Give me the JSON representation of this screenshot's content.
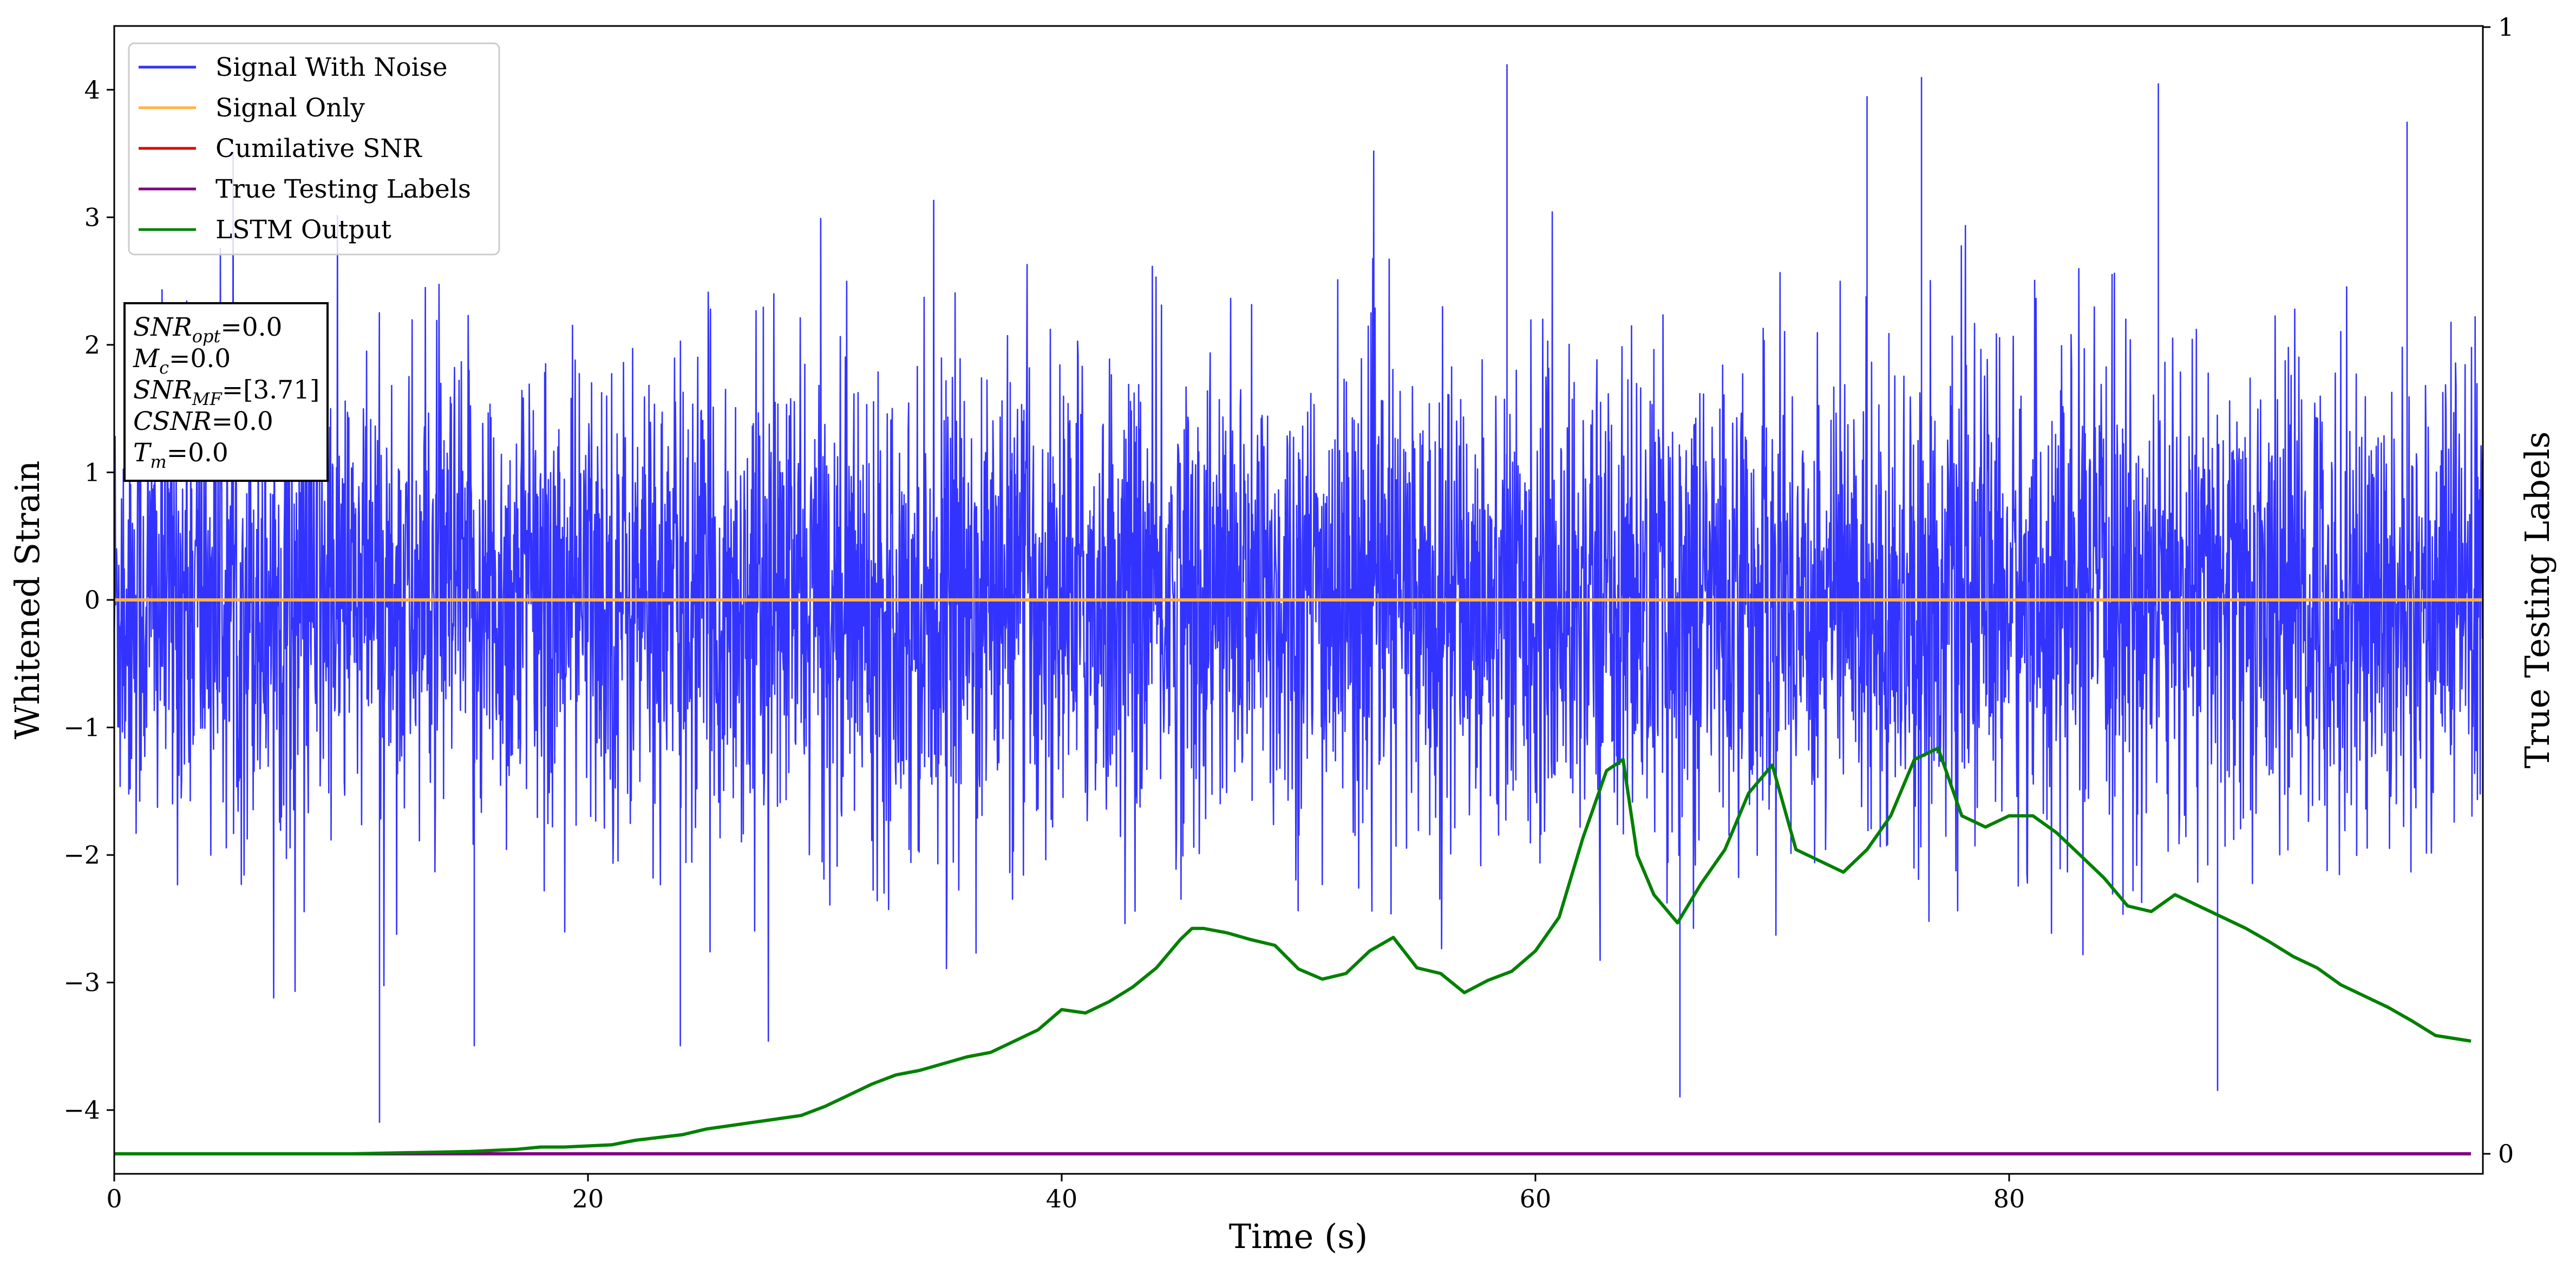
{
  "chart_data": {
    "type": "line",
    "xlabel": "Time (s)",
    "ylabel": "Whitened Strain",
    "y2label": "True Testing Labels",
    "xlim": [
      0,
      100
    ],
    "ylim": [
      -4.5,
      4.5
    ],
    "y2lim": [
      0,
      1
    ],
    "xticks": [
      0,
      20,
      40,
      60,
      80
    ],
    "yticks": [
      -4,
      -3,
      -2,
      -1,
      0,
      1,
      2,
      3,
      4
    ],
    "y2ticks": [
      0,
      1
    ],
    "grid": false,
    "legend_position": "top-left",
    "noise_envelope": {
      "typical_range": [
        -2.0,
        2.0
      ],
      "extreme_spikes": [
        {
          "x": 11.2,
          "y": -4.1
        },
        {
          "x": 15.2,
          "y": -3.5
        },
        {
          "x": 23.9,
          "y": -3.5
        },
        {
          "x": 58.8,
          "y": 4.2
        },
        {
          "x": 66.1,
          "y": -3.9
        },
        {
          "x": 76.3,
          "y": 4.1
        },
        {
          "x": 74.0,
          "y": 3.95
        },
        {
          "x": 86.3,
          "y": 4.05
        },
        {
          "x": 96.8,
          "y": 3.75
        },
        {
          "x": 88.8,
          "y": -3.85
        }
      ]
    },
    "series": [
      {
        "name": "Signal With Noise",
        "color": "#3333ff",
        "axis": "left",
        "x_range": [
          0,
          100
        ],
        "y_range": [
          -4.1,
          4.2
        ]
      },
      {
        "name": "Signal Only",
        "color": "#ffb347",
        "axis": "left",
        "x": [
          0,
          100
        ],
        "y": [
          0,
          0
        ]
      },
      {
        "name": "Cumilative SNR",
        "color": "#e00000",
        "axis": "left",
        "x": [],
        "y": []
      },
      {
        "name": "True Testing Labels",
        "color": "#800080",
        "axis": "right",
        "x": [
          0,
          99.5
        ],
        "y": [
          0,
          0
        ]
      },
      {
        "name": "LSTM Output",
        "color": "#008000",
        "axis": "right",
        "x": [
          0,
          10,
          15,
          17,
          18,
          19,
          21,
          22,
          24,
          25,
          26,
          27,
          28,
          29,
          30,
          31,
          32,
          33,
          34,
          35,
          36,
          37,
          38,
          39,
          40,
          41,
          42,
          43,
          44,
          45,
          45.5,
          46,
          47,
          48,
          49,
          50,
          51,
          52,
          53,
          54,
          55,
          56,
          57,
          58,
          59,
          60,
          61,
          62,
          63,
          63.7,
          64.3,
          65,
          66,
          67,
          68,
          69,
          70,
          71,
          72,
          73,
          74,
          75,
          76,
          77,
          78,
          79,
          80,
          81,
          82,
          83,
          84,
          85,
          86,
          87,
          88,
          89,
          90,
          91,
          92,
          93,
          94,
          95,
          96,
          97,
          98,
          99.5
        ],
        "y": [
          0,
          0,
          0.002,
          0.004,
          0.006,
          0.006,
          0.008,
          0.012,
          0.017,
          0.022,
          0.025,
          0.028,
          0.031,
          0.034,
          0.042,
          0.052,
          0.062,
          0.07,
          0.074,
          0.08,
          0.086,
          0.09,
          0.1,
          0.11,
          0.128,
          0.125,
          0.135,
          0.148,
          0.165,
          0.19,
          0.2,
          0.2,
          0.196,
          0.19,
          0.185,
          0.164,
          0.155,
          0.16,
          0.18,
          0.192,
          0.165,
          0.16,
          0.143,
          0.154,
          0.162,
          0.18,
          0.21,
          0.28,
          0.34,
          0.35,
          0.265,
          0.23,
          0.205,
          0.24,
          0.27,
          0.32,
          0.345,
          0.27,
          0.26,
          0.25,
          0.27,
          0.3,
          0.35,
          0.36,
          0.3,
          0.29,
          0.3,
          0.3,
          0.285,
          0.265,
          0.245,
          0.22,
          0.215,
          0.23,
          0.22,
          0.21,
          0.2,
          0.188,
          0.175,
          0.165,
          0.15,
          0.14,
          0.13,
          0.118,
          0.105,
          0.1
        ]
      }
    ]
  },
  "info_box": {
    "lines": [
      {
        "base": "SNR",
        "sub": "opt",
        "value": "=0.0"
      },
      {
        "base": "M",
        "sub": "c",
        "value": "=0.0"
      },
      {
        "base": "SNR",
        "sub": "MF",
        "value": "=[3.71]"
      },
      {
        "base": "CSNR",
        "sub": "",
        "value": "=0.0"
      },
      {
        "base": "T",
        "sub": "m",
        "value": "=0.0"
      }
    ]
  }
}
